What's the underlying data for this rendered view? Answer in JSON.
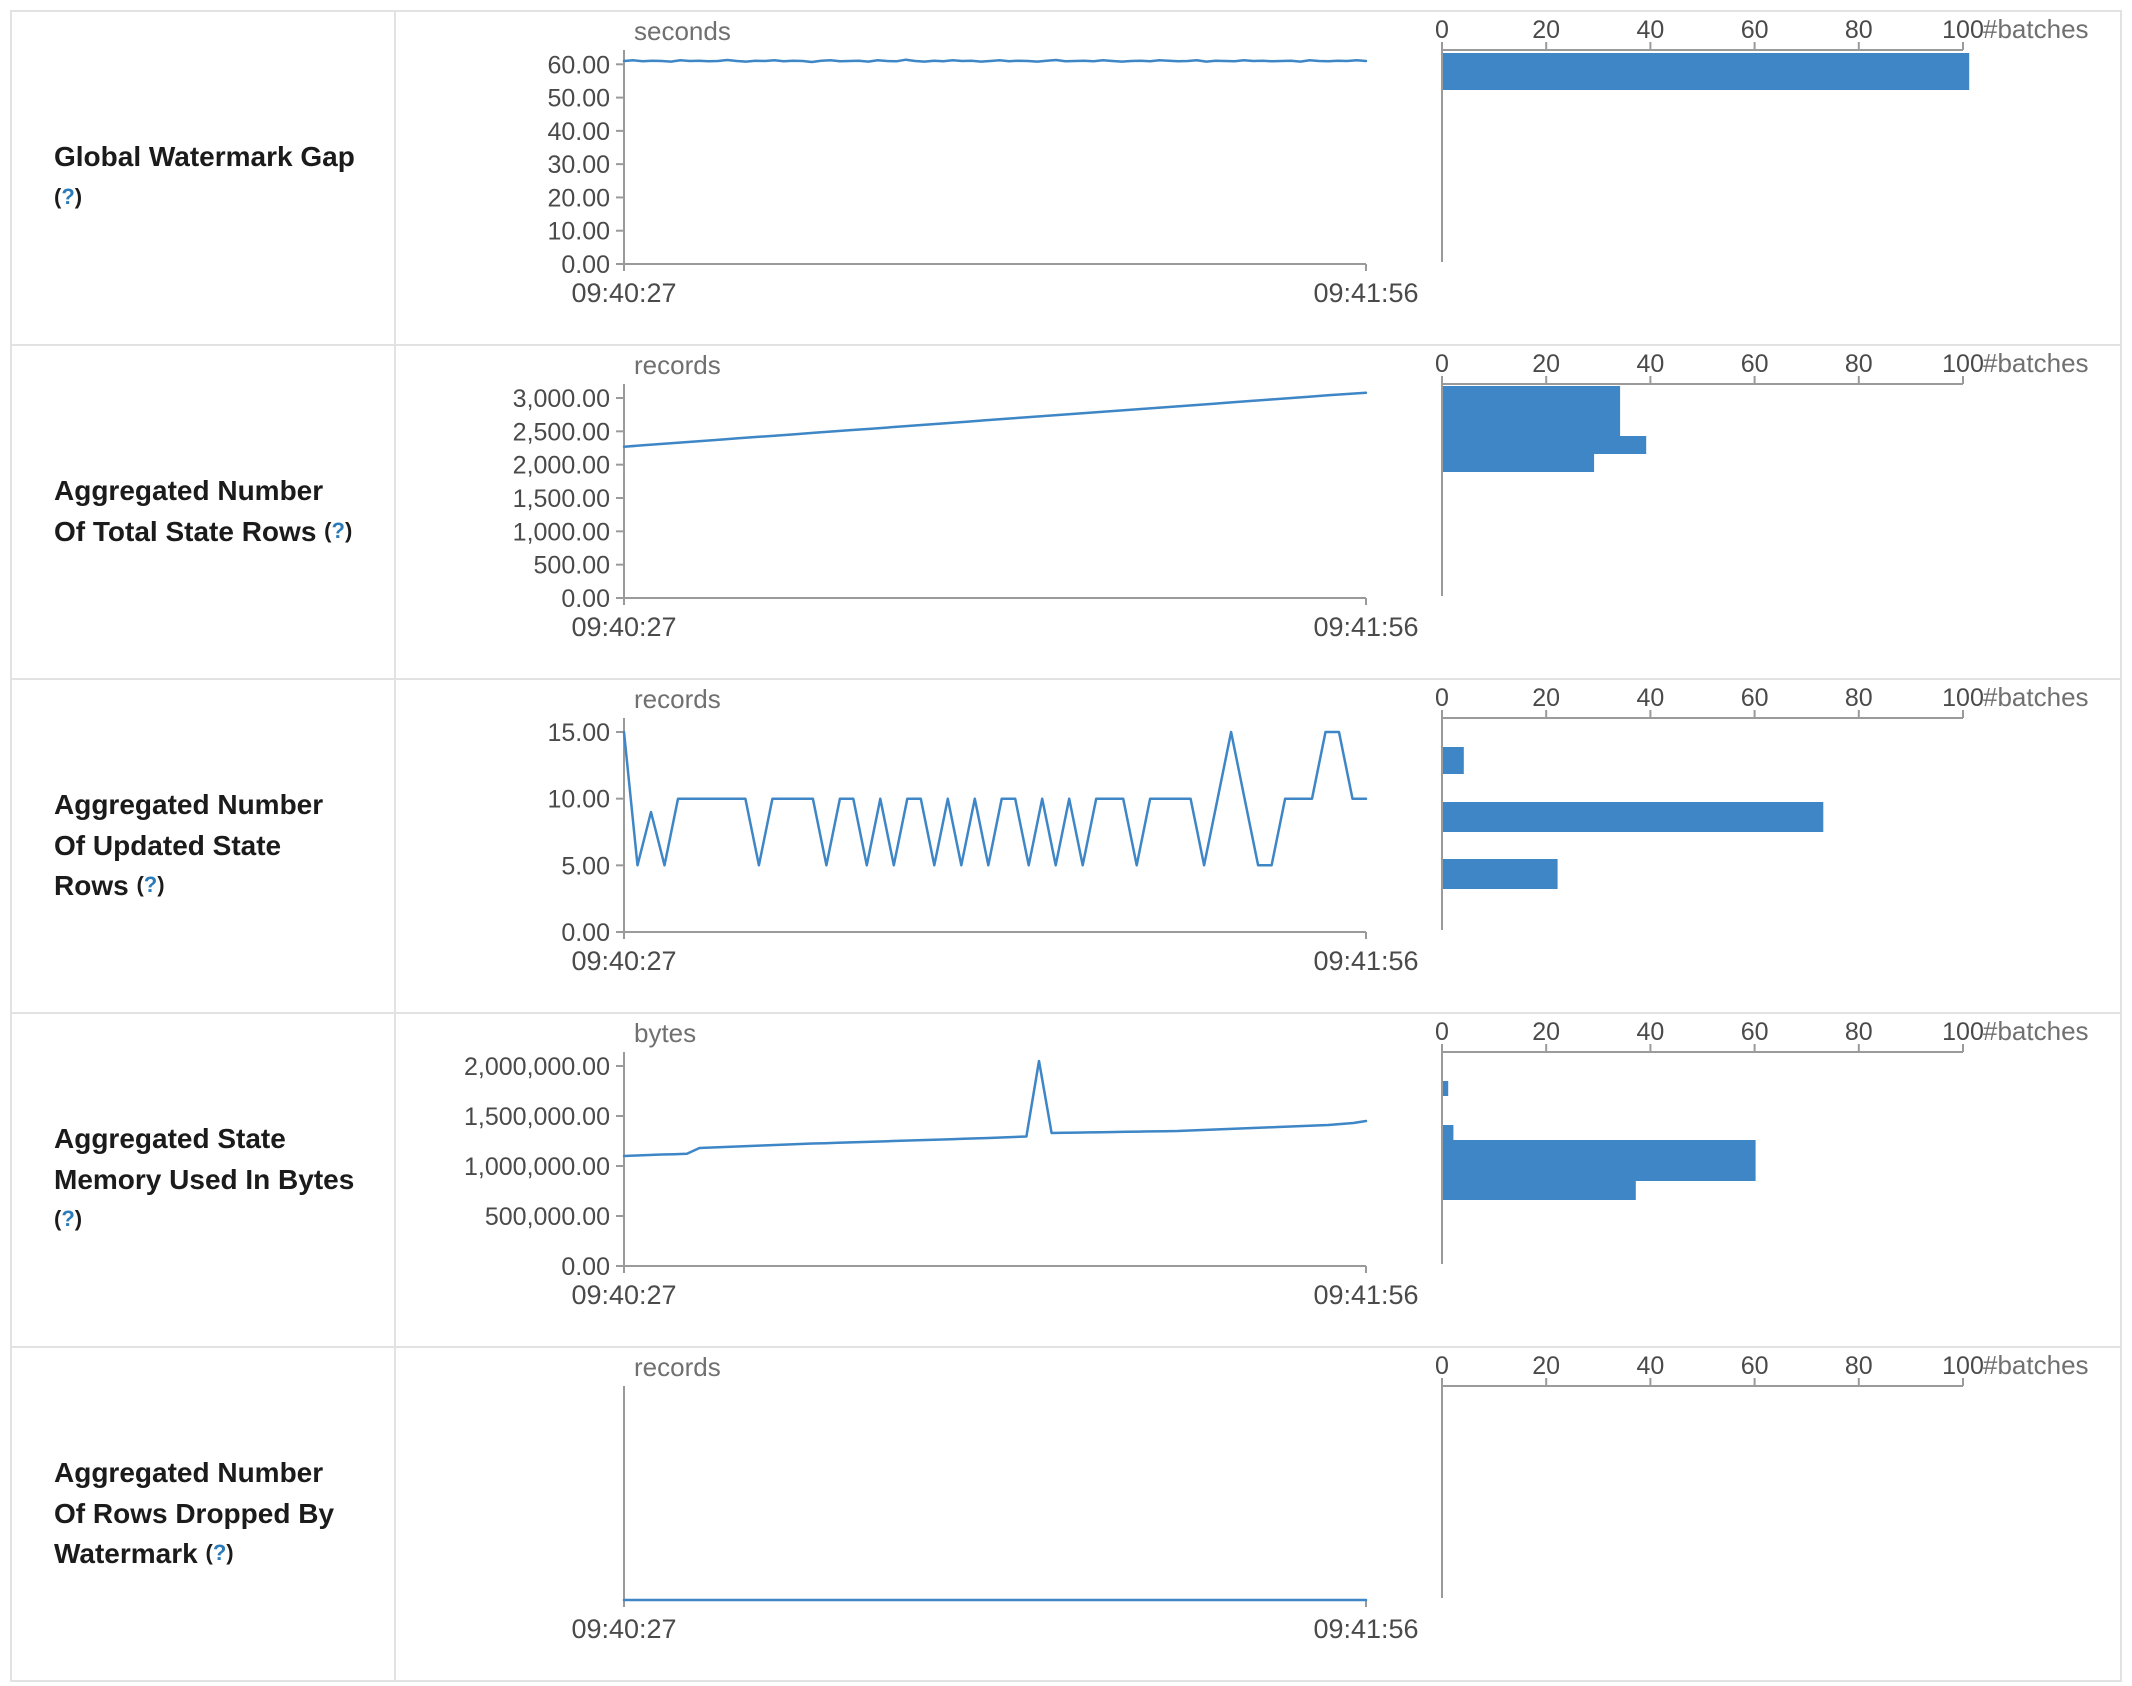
{
  "ui": {
    "help_open": "(",
    "help_glyph": "?",
    "help_close": ")",
    "accent_color": "#3e86c6",
    "axis_color": "#9a9a9a"
  },
  "chart_data": [
    {
      "label": "Global Watermark Gap",
      "timeline": {
        "type": "line",
        "unit": "seconds",
        "x_start": "09:40:27",
        "x_end": "09:41:56",
        "ydomain": 64.3,
        "yticks": [
          {
            "v": 60,
            "label": "60.00"
          },
          {
            "v": 50,
            "label": "50.00"
          },
          {
            "v": 40,
            "label": "40.00"
          },
          {
            "v": 30,
            "label": "30.00"
          },
          {
            "v": 20,
            "label": "20.00"
          },
          {
            "v": 10,
            "label": "10.00"
          },
          {
            "v": 0,
            "label": "0.00"
          }
        ],
        "values": [
          61,
          61.2,
          60.9,
          61.1,
          61,
          60.8,
          61.2,
          61,
          61.1,
          60.9,
          61,
          61.3,
          61,
          60.8,
          61.1,
          61,
          61.2,
          60.9,
          61.1,
          61,
          60.7,
          61.1,
          61.2,
          60.9,
          61,
          61.1,
          60.8,
          61.2,
          61,
          60.9,
          61.4,
          61,
          60.8,
          61.1,
          60.9,
          61.2,
          61,
          61.1,
          60.8,
          61,
          61.2,
          60.9,
          61.1,
          61,
          60.8,
          61.1,
          61.3,
          60.9,
          61,
          61.1,
          60.9,
          61.2,
          61,
          60.8,
          61,
          61.1,
          60.9,
          61.2,
          61.1,
          60.9,
          61,
          61.2,
          60.8,
          61.1,
          61,
          60.9,
          61.2,
          61,
          61.1,
          60.9,
          61,
          61.1,
          60.8,
          61.2,
          61,
          60.9,
          61.1,
          61,
          61.2,
          61
        ]
      },
      "histogram": {
        "type": "bar",
        "axis_label": "#batches",
        "xticks": [
          0,
          20,
          40,
          60,
          80,
          100
        ],
        "xmax": 100,
        "bars": [
          {
            "offset": 3,
            "height": 37,
            "value": 101
          }
        ]
      }
    },
    {
      "label": "Aggregated Number Of Total State Rows",
      "timeline": {
        "type": "line",
        "unit": "records",
        "x_start": "09:40:27",
        "x_end": "09:41:56",
        "ydomain": 3210,
        "yticks": [
          {
            "v": 3000,
            "label": "3,000.00"
          },
          {
            "v": 2500,
            "label": "2,500.00"
          },
          {
            "v": 2000,
            "label": "2,000.00"
          },
          {
            "v": 1500,
            "label": "1,500.00"
          },
          {
            "v": 1000,
            "label": "1,000.00"
          },
          {
            "v": 500,
            "label": "500.00"
          },
          {
            "v": 0,
            "label": "0.00"
          }
        ],
        "values": [
          2270,
          2291,
          2312,
          2332,
          2353,
          2374,
          2395,
          2416,
          2436,
          2457,
          2478,
          2499,
          2520,
          2540,
          2561,
          2582,
          2603,
          2624,
          2644,
          2665,
          2686,
          2707,
          2728,
          2748,
          2769,
          2790,
          2811,
          2832,
          2852,
          2873,
          2894,
          2915,
          2936,
          2956,
          2977,
          2998,
          3019,
          3040,
          3060,
          3080
        ]
      },
      "histogram": {
        "type": "bar",
        "axis_label": "#batches",
        "xticks": [
          0,
          20,
          40,
          60,
          80,
          100
        ],
        "xmax": 100,
        "bars": [
          {
            "offset": 2,
            "height": 50,
            "value": 34
          },
          {
            "offset": 52,
            "height": 18,
            "value": 39
          },
          {
            "offset": 70,
            "height": 18,
            "value": 29
          }
        ]
      }
    },
    {
      "label": "Aggregated Number Of Updated State Rows",
      "timeline": {
        "type": "line",
        "unit": "records",
        "x_start": "09:40:27",
        "x_end": "09:41:56",
        "ydomain": 16.05,
        "yticks": [
          {
            "v": 15,
            "label": "15.00"
          },
          {
            "v": 10,
            "label": "10.00"
          },
          {
            "v": 5,
            "label": "5.00"
          },
          {
            "v": 0,
            "label": "0.00"
          }
        ],
        "values": [
          15,
          5,
          9,
          5,
          10,
          10,
          10,
          10,
          10,
          10,
          5,
          10,
          10,
          10,
          10,
          5,
          10,
          10,
          5,
          10,
          5,
          10,
          10,
          5,
          10,
          5,
          10,
          5,
          10,
          10,
          5,
          10,
          5,
          10,
          5,
          10,
          10,
          10,
          5,
          10,
          10,
          10,
          10,
          5,
          10,
          15,
          10,
          5,
          5,
          10,
          10,
          10,
          15,
          15,
          10,
          10
        ]
      },
      "histogram": {
        "type": "bar",
        "axis_label": "#batches",
        "xticks": [
          0,
          20,
          40,
          60,
          80,
          100
        ],
        "xmax": 100,
        "bars": [
          {
            "offset": 29,
            "height": 27,
            "value": 4
          },
          {
            "offset": 84,
            "height": 30,
            "value": 73
          },
          {
            "offset": 141,
            "height": 30,
            "value": 22
          }
        ]
      }
    },
    {
      "label": "Aggregated State Memory Used In Bytes",
      "timeline": {
        "type": "line",
        "unit": "bytes",
        "x_start": "09:40:27",
        "x_end": "09:41:56",
        "ydomain": 2140000,
        "yticks": [
          {
            "v": 2000000,
            "label": "2,000,000.00"
          },
          {
            "v": 1500000,
            "label": "1,500,000.00"
          },
          {
            "v": 1000000,
            "label": "1,000,000.00"
          },
          {
            "v": 500000,
            "label": "500,000.00"
          },
          {
            "v": 0,
            "label": "0.00"
          }
        ],
        "values": [
          1100000,
          1105000,
          1110000,
          1115000,
          1118000,
          1122000,
          1180000,
          1185000,
          1190000,
          1195000,
          1200000,
          1205000,
          1210000,
          1215000,
          1220000,
          1225000,
          1228000,
          1232000,
          1236000,
          1240000,
          1244000,
          1248000,
          1252000,
          1256000,
          1260000,
          1264000,
          1268000,
          1272000,
          1276000,
          1280000,
          1285000,
          1290000,
          1295000,
          2050000,
          1330000,
          1332000,
          1334000,
          1336000,
          1338000,
          1340000,
          1342000,
          1344000,
          1346000,
          1348000,
          1350000,
          1355000,
          1360000,
          1365000,
          1370000,
          1375000,
          1380000,
          1385000,
          1390000,
          1395000,
          1400000,
          1405000,
          1410000,
          1420000,
          1430000,
          1450000
        ]
      },
      "histogram": {
        "type": "bar",
        "axis_label": "#batches",
        "xticks": [
          0,
          20,
          40,
          60,
          80,
          100
        ],
        "xmax": 100,
        "bars": [
          {
            "offset": 29,
            "height": 15,
            "value": 1
          },
          {
            "offset": 73,
            "height": 15,
            "value": 2
          },
          {
            "offset": 88,
            "height": 41,
            "value": 60
          },
          {
            "offset": 129,
            "height": 19,
            "value": 37
          }
        ]
      }
    },
    {
      "label": "Aggregated Number Of Rows Dropped By Watermark",
      "timeline": {
        "type": "line",
        "unit": "records",
        "x_start": "09:40:27",
        "x_end": "09:41:56",
        "ydomain": 1,
        "yticks": [],
        "values": [
          0,
          0,
          0,
          0
        ]
      },
      "histogram": {
        "type": "bar",
        "axis_label": "#batches",
        "xticks": [
          0,
          20,
          40,
          60,
          80,
          100
        ],
        "xmax": 100,
        "bars": []
      }
    }
  ]
}
